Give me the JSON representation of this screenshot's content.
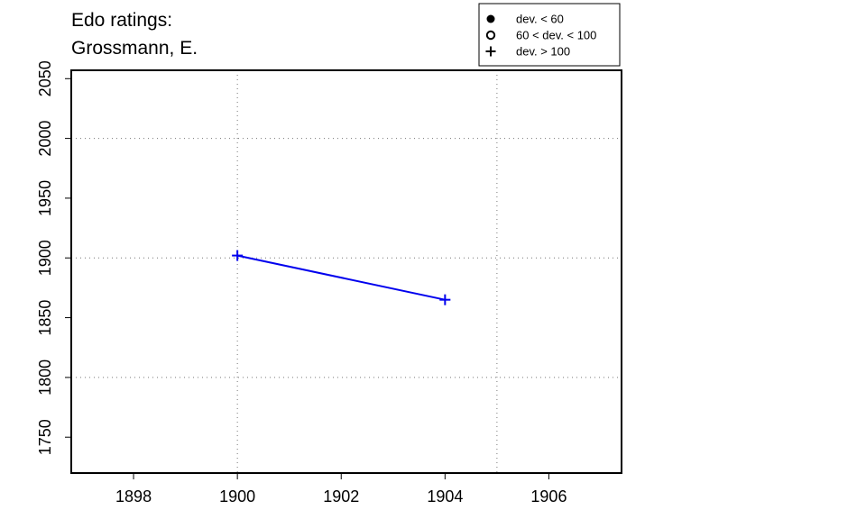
{
  "title_lines": [
    "Edo ratings:",
    "Grossmann, E."
  ],
  "chart_data": {
    "type": "line",
    "xlim": [
      1896.8,
      1907.4
    ],
    "ylim": [
      1720,
      2057
    ],
    "x_ticks": [
      1898,
      1900,
      1902,
      1904,
      1906
    ],
    "y_ticks": [
      1750,
      1800,
      1850,
      1900,
      1950,
      2000,
      2050
    ],
    "grid": "dotted lines at x = 1900, 1905 and y = 1800, 1900, 2000",
    "grid_x": [
      1900,
      1905
    ],
    "grid_y": [
      1800,
      1900,
      2000
    ],
    "legend_position": "top-right",
    "legend": [
      {
        "symbol": "filled-circle",
        "label": "dev. < 60"
      },
      {
        "symbol": "open-circle",
        "label": "60 < dev. < 100"
      },
      {
        "symbol": "plus",
        "label": "dev. > 100"
      }
    ],
    "series": [
      {
        "color": "#0000ee",
        "marker": "plus",
        "points": [
          {
            "x": 1900,
            "y": 1902
          },
          {
            "x": 1904,
            "y": 1865
          }
        ]
      }
    ]
  }
}
